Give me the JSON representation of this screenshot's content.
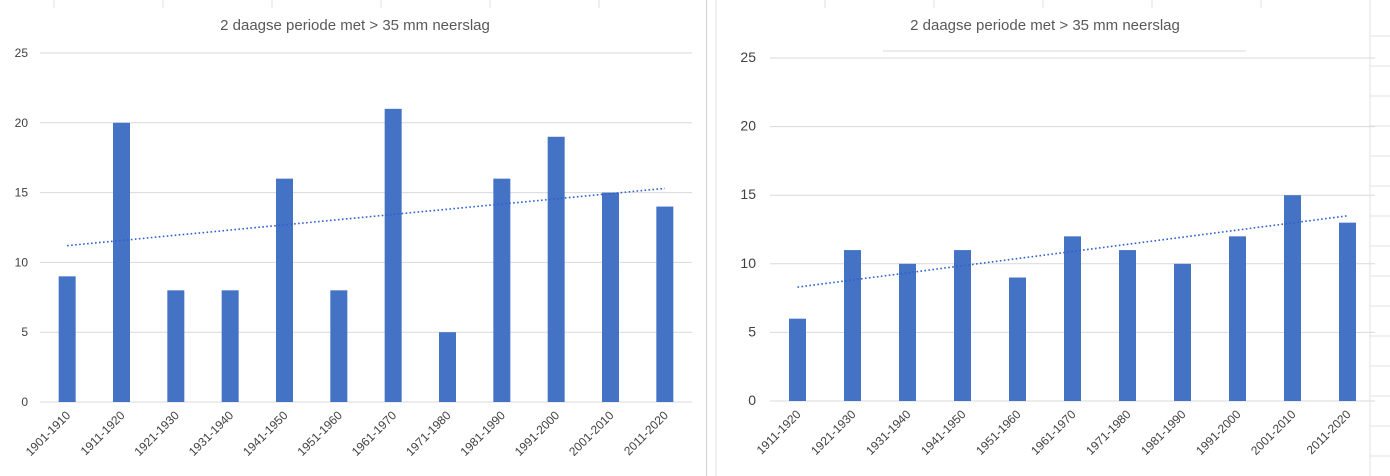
{
  "chart_data": [
    {
      "type": "bar",
      "title": "2 daagse periode met > 35 mm neerslag",
      "categories": [
        "1901-1910",
        "1911-1920",
        "1921-1930",
        "1931-1940",
        "1941-1950",
        "1951-1960",
        "1961-1970",
        "1971-1980",
        "1981-1990",
        "1991-2000",
        "2001-2010",
        "2011-2020"
      ],
      "values": [
        9,
        20,
        8,
        8,
        16,
        8,
        21,
        5,
        16,
        19,
        15,
        14
      ],
      "ylim": [
        0,
        25
      ],
      "yticks": [
        "0",
        "5",
        "10",
        "15",
        "20",
        "25"
      ],
      "trendline": {
        "type": "linear",
        "start": 11.2,
        "end": 15.3
      },
      "grid": true,
      "bar_color": "#4472c4",
      "trend_color": "#2f5fd0"
    },
    {
      "type": "bar",
      "title": "2 daagse periode met > 35 mm neerslag",
      "categories": [
        "1911-1920",
        "1921-1930",
        "1931-1940",
        "1941-1950",
        "1951-1960",
        "1961-1970",
        "1971-1980",
        "1981-1990",
        "1991-2000",
        "2001-2010",
        "2011-2020"
      ],
      "values": [
        6,
        11,
        10,
        11,
        9,
        12,
        11,
        10,
        12,
        15,
        13
      ],
      "ylim": [
        0,
        25
      ],
      "yticks": [
        "0",
        "5",
        "10",
        "15",
        "20",
        "25"
      ],
      "trendline": {
        "type": "linear",
        "start": 8.3,
        "end": 13.5
      },
      "grid": true,
      "bar_color": "#4472c4",
      "trend_color": "#2f5fd0"
    }
  ]
}
